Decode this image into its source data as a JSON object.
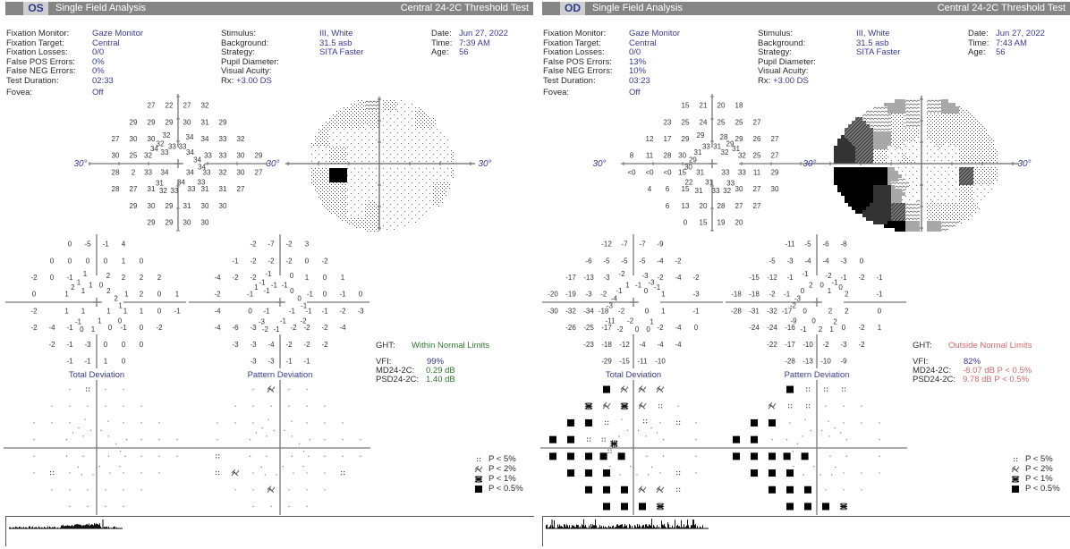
{
  "eyes": [
    {
      "eye": "OS",
      "title": "Single Field Analysis",
      "test": "Central 24-2C Threshold Test",
      "info_left": [
        {
          "label": "Fixation Monitor:",
          "value": "Gaze Monitor"
        },
        {
          "label": "Fixation Target:",
          "value": "Central"
        },
        {
          "label": "Fixation Losses:",
          "value": "0/0"
        },
        {
          "label": "False POS Errors:",
          "value": "0%"
        },
        {
          "label": "False NEG Errors:",
          "value": "0%"
        },
        {
          "label": "Test Duration:",
          "value": "02:33"
        }
      ],
      "fovea": {
        "label": "Fovea:",
        "value": "Off"
      },
      "info_mid": [
        {
          "label": "Stimulus:",
          "value": "III, White"
        },
        {
          "label": "Background:",
          "value": "31.5 asb"
        },
        {
          "label": "Strategy:",
          "value": "SITA Faster"
        },
        {
          "label": "Pupil Diameter:"
        },
        {
          "label": "Visual Acuity:"
        }
      ],
      "rx": {
        "label": "Rx:",
        "value": "+3.00 DS"
      },
      "info_right": [
        {
          "label": "Date:",
          "value": "Jun 27, 2022"
        },
        {
          "label": "Time:",
          "value": "7:39 AM"
        },
        {
          "label": "Age:",
          "value": "56"
        }
      ],
      "axis_label": "30°",
      "threshold": [
        "27",
        "22",
        "27",
        "32",
        "29",
        "29",
        "29",
        "30",
        "31",
        "29",
        "27",
        "30",
        "30",
        "32",
        "34",
        "34",
        "33",
        "32",
        "32",
        "33",
        "33",
        "34",
        "33",
        "34",
        "34",
        "34",
        "30",
        "25",
        "32",
        "33",
        "33",
        "30",
        "29",
        "28",
        "2",
        "33",
        "34",
        "34",
        "33",
        "32",
        "30",
        "27",
        "28",
        "27",
        "31",
        "32",
        "33",
        "33",
        "31",
        "31",
        "27",
        "31",
        "34",
        "33",
        "29",
        "30",
        "29",
        "31",
        "30",
        "30",
        "29",
        "29",
        "30",
        "30"
      ],
      "total_deviation": [
        "0",
        "-5",
        "-1",
        "4",
        "0",
        "0",
        "0",
        "0",
        "1",
        "0",
        "-2",
        "0",
        "-1",
        "1",
        "2",
        "2",
        "2",
        "2",
        "1",
        "1",
        "0",
        "2",
        "1",
        "2",
        "2",
        "1",
        "0",
        null,
        "1",
        "1",
        "2",
        "0",
        "1",
        "-2",
        null,
        "1",
        "1",
        "1",
        "1",
        "1",
        "0",
        "-1",
        "-2",
        "-4",
        "-1",
        "0",
        "1",
        "0",
        "-1",
        "0",
        "-2",
        "-1",
        "1",
        "0",
        "-2",
        "-1",
        "-3",
        "0",
        "0",
        "0",
        "-1",
        "-1",
        "1",
        "0"
      ],
      "pattern_deviation": [
        "-2",
        "-7",
        "-2",
        "3",
        "-1",
        "-2",
        "-2",
        "-2",
        "0",
        "-2",
        "-4",
        "-2",
        "-2",
        "-1",
        "0",
        "1",
        "0",
        "1",
        "-1",
        "-1",
        "-1",
        "1",
        "-1",
        "0",
        "0",
        "-1",
        "-2",
        null,
        "-1",
        "-1",
        "0",
        "-1",
        "0",
        "-4",
        null,
        "0",
        "-1",
        "-1",
        "-1",
        "-1",
        "-2",
        "-3",
        "-4",
        "-6",
        "-3",
        "-2",
        "-1",
        "-2",
        "-2",
        "-2",
        "-4",
        "-3",
        "-1",
        "-2",
        "-3",
        "-3",
        "-4",
        "-2",
        "-2",
        "-2",
        "-3",
        "-3",
        "-1",
        "-1"
      ],
      "total_probability": [
        "n",
        "5",
        "n",
        "n",
        "n",
        "n",
        "n",
        "n",
        "n",
        "n",
        "n",
        "n",
        "n",
        "n",
        "n",
        "n",
        "n",
        "n",
        "n",
        "n",
        "n",
        "n",
        "n",
        "n",
        "n",
        "n",
        "n",
        null,
        "n",
        "n",
        "n",
        "n",
        "n",
        "n",
        null,
        "n",
        "n",
        "n",
        "n",
        "n",
        "n",
        "n",
        "n",
        "5",
        "n",
        "n",
        "n",
        "n",
        "n",
        "n",
        "n",
        "n",
        "n",
        "n",
        "n",
        "n",
        "n",
        "n",
        "n",
        "n",
        "n",
        "n",
        "n",
        "n"
      ],
      "pattern_probability": [
        "n",
        "2",
        "n",
        "n",
        "n",
        "n",
        "n",
        "n",
        "n",
        "n",
        "n",
        "n",
        "n",
        "n",
        "n",
        "n",
        "n",
        "n",
        "n",
        "n",
        "n",
        "n",
        "n",
        "n",
        "n",
        "n",
        "n",
        null,
        "n",
        "n",
        "n",
        "n",
        "n",
        "5",
        null,
        "n",
        "n",
        "n",
        "n",
        "n",
        "n",
        "n",
        "5",
        "2",
        "n",
        "n",
        "n",
        "n",
        "n",
        "n",
        "5",
        "n",
        "n",
        "n",
        "n",
        "n",
        "2",
        "n",
        "n",
        "n",
        "n",
        "n",
        "n",
        "n"
      ],
      "total_deviation_label": "Total Deviation",
      "pattern_deviation_label": "Pattern Deviation",
      "ght": {
        "label": "GHT:",
        "value": "Within Normal Limits"
      },
      "vfi": {
        "label": "VFI:",
        "value": "99%"
      },
      "md": {
        "label": "MD24-2C:",
        "value": "0.29 dB"
      },
      "psd": {
        "label": "PSD24-2C:",
        "value": "1.40 dB"
      },
      "status_color": "#2f7a2f"
    },
    {
      "eye": "OD",
      "title": "Single Field Analysis",
      "test": "Central 24-2C Threshold Test",
      "info_left": [
        {
          "label": "Fixation Monitor:",
          "value": "Gaze Monitor"
        },
        {
          "label": "Fixation Target:",
          "value": "Central"
        },
        {
          "label": "Fixation Losses:",
          "value": "0/0"
        },
        {
          "label": "False POS Errors:",
          "value": "13%"
        },
        {
          "label": "False NEG Errors:",
          "value": "10%"
        },
        {
          "label": "Test Duration:",
          "value": "03:23"
        }
      ],
      "fovea": {
        "label": "Fovea:",
        "value": "Off"
      },
      "info_mid": [
        {
          "label": "Stimulus:",
          "value": "III, White"
        },
        {
          "label": "Background:",
          "value": "31.5 asb"
        },
        {
          "label": "Strategy:",
          "value": "SITA Faster"
        },
        {
          "label": "Pupil Diameter:"
        },
        {
          "label": "Visual Acuity:"
        }
      ],
      "rx": {
        "label": "Rx:",
        "value": "+3.00 DS"
      },
      "info_right": [
        {
          "label": "Date:",
          "value": "Jun 27, 2022"
        },
        {
          "label": "Time:",
          "value": "7:43 AM"
        },
        {
          "label": "Age:",
          "value": "56"
        }
      ],
      "axis_label": "30°",
      "threshold": [
        "15",
        "21",
        "20",
        "18",
        "23",
        "25",
        "24",
        "25",
        "25",
        "27",
        "12",
        "17",
        "29",
        "29",
        "28",
        "29",
        "26",
        "27",
        "33",
        "31",
        "29",
        "31",
        "31",
        "32",
        "29",
        "30",
        "8",
        "11",
        "28",
        "30",
        "32",
        "25",
        "27",
        "<0",
        "<0",
        "<0",
        "15",
        "31",
        "33",
        "33",
        "11",
        "29",
        "4",
        "6",
        "15",
        "31",
        "33",
        "32",
        "30",
        "27",
        "30",
        "22",
        "31",
        "33",
        "6",
        "13",
        "20",
        "28",
        "27",
        "27",
        "0",
        "15",
        "19",
        "20"
      ],
      "total_deviation": [
        "-12",
        "-7",
        "-7",
        "-9",
        "-6",
        "-5",
        "-5",
        "-5",
        "-4",
        "-2",
        "-17",
        "-13",
        "-3",
        "-2",
        "-3",
        "-2",
        "-4",
        "-2",
        "1",
        "-1",
        "-3",
        "-1",
        "-1",
        "0",
        "-4",
        "-3",
        "-20",
        "-19",
        "-3",
        "-2",
        "1",
        null,
        "-3",
        "-30",
        "-32",
        "-34",
        "-18",
        "-2",
        "0",
        "1",
        null,
        "-1",
        "-26",
        "-25",
        "-17",
        "-2",
        "0",
        "0",
        "-2",
        "-4",
        "0",
        "-11",
        "-2",
        "1",
        "-23",
        "-18",
        "-12",
        "-4",
        "-4",
        "-4",
        "-29",
        "-15",
        "-11",
        "-10"
      ],
      "pattern_deviation": [
        "-11",
        "-5",
        "-6",
        "-8",
        "-5",
        "-3",
        "-4",
        "-4",
        "-3",
        "0",
        "-15",
        "-12",
        "-1",
        "-1",
        "-2",
        "-1",
        "-2",
        "-1",
        "2",
        "0",
        "-1",
        "0",
        "0",
        "1",
        "-3",
        "-2",
        "-18",
        "-18",
        "-2",
        "-1",
        "2",
        null,
        "-1",
        "-28",
        "-31",
        "-32",
        "-17",
        "0",
        "2",
        "2",
        null,
        "0",
        "-24",
        "-24",
        "-16",
        "-1",
        "2",
        "1",
        "0",
        "-2",
        "1",
        "-9",
        "0",
        "2",
        "-22",
        "-17",
        "-10",
        "-2",
        "-3",
        "-2",
        "-28",
        "-13",
        "-10",
        "-9"
      ],
      "total_probability": [
        "0",
        "2",
        "2",
        "2",
        "1",
        "2",
        "1",
        "2",
        "5",
        "n",
        "0",
        "0",
        "5",
        "n",
        "5",
        "n",
        "5",
        "n",
        "n",
        "n",
        "n",
        "n",
        "n",
        "n",
        "1",
        "5",
        "0",
        "0",
        "5",
        "5",
        "n",
        null,
        "n",
        "0",
        "0",
        "0",
        "0",
        "0",
        "n",
        "n",
        null,
        "n",
        "0",
        "0",
        "0",
        "n",
        "n",
        "n",
        "n",
        "5",
        "n",
        "n",
        "n",
        "n",
        "0",
        "0",
        "0",
        "2",
        "2",
        "5",
        "0",
        "0",
        "0",
        "1"
      ],
      "pattern_probability": [
        "0",
        "5",
        "5",
        "5",
        "2",
        "5",
        "5",
        "n",
        "n",
        "n",
        "0",
        "0",
        "n",
        "n",
        "n",
        "n",
        "n",
        "n",
        "n",
        "n",
        "n",
        "n",
        "n",
        "n",
        "n",
        "n",
        "0",
        "0",
        "n",
        "n",
        "n",
        null,
        "n",
        "0",
        "0",
        "0",
        "0",
        "0",
        "n",
        "n",
        null,
        "n",
        "0",
        "0",
        "0",
        "n",
        "n",
        "n",
        "n",
        "n",
        "n",
        "n",
        "n",
        "n",
        "0",
        "0",
        "0",
        "n",
        "n",
        "n",
        "0",
        "0",
        "0",
        "1"
      ],
      "total_deviation_label": "Total Deviation",
      "pattern_deviation_label": "Pattern Deviation",
      "ght": {
        "label": "GHT:",
        "value": "Outside Normal Limits"
      },
      "vfi": {
        "label": "VFI:",
        "value": "82%"
      },
      "md": {
        "label": "MD24-2C:",
        "value": "-8.07 dB P < 0.5%"
      },
      "psd": {
        "label": "PSD24-2C:",
        "value": "9.78 dB P < 0.5%"
      },
      "status_color": "#d06a6a"
    }
  ],
  "legend": [
    {
      "symbol": "5",
      "label": "P < 5%"
    },
    {
      "symbol": "2",
      "label": "P < 2%"
    },
    {
      "symbol": "1",
      "label": "P < 1%"
    },
    {
      "symbol": "0",
      "label": "P < 0.5%"
    }
  ],
  "colors": {
    "header_bar": "#858585",
    "eye_label": "#2b3990",
    "value_text": "#3a3a98",
    "axis_label": "#3a3a98"
  }
}
